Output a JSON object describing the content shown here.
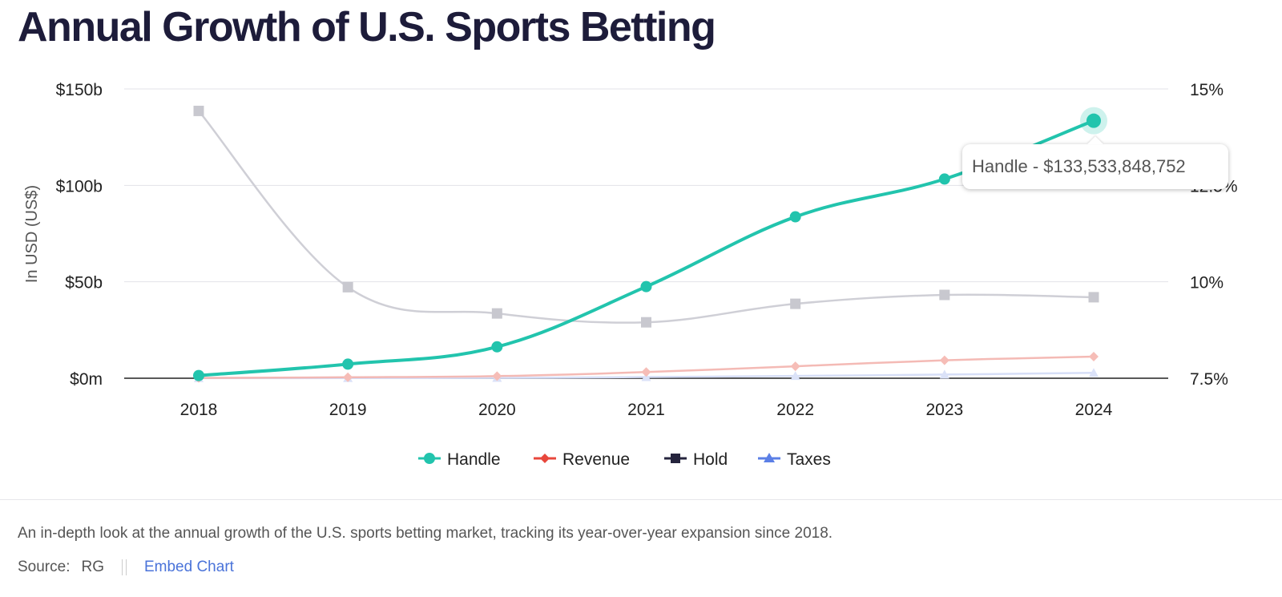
{
  "page": {
    "title": "Annual Growth of U.S. Sports Betting",
    "description": "An in-depth look at the annual growth of the U.S. sports betting market, tracking its year-over-year expansion since 2018.",
    "source_label": "Source:",
    "source_value": "RG",
    "embed_label": "Embed Chart"
  },
  "tooltip": {
    "text": "Handle - $133,533,848,752"
  },
  "colors": {
    "handle": "#22c4ad",
    "revenue": "#e8473c",
    "hold": "#25243d",
    "taxes": "#5b7fe6"
  },
  "chart_data": {
    "type": "line",
    "title": "Annual Growth of U.S. Sports Betting",
    "x": [
      "2018",
      "2019",
      "2020",
      "2021",
      "2022",
      "2023",
      "2024"
    ],
    "ylabel": "In USD (US$)",
    "ylim": [
      0,
      150000000000
    ],
    "y_ticks": [
      "$0m",
      "$50b",
      "$100b",
      "$150b"
    ],
    "y2lim": [
      7.5,
      15
    ],
    "y2_ticks": [
      "7.5%",
      "10%",
      "12.5%",
      "15%"
    ],
    "grid": true,
    "legend_position": "bottom",
    "series": [
      {
        "name": "Handle",
        "axis": "left",
        "marker": "circle",
        "values": [
          1400000000,
          7300000000,
          16300000000,
          47500000000,
          83700000000,
          103300000000,
          133533848752
        ]
      },
      {
        "name": "Revenue",
        "axis": "left",
        "marker": "diamond",
        "values": [
          150000000,
          500000000,
          1100000000,
          3200000000,
          6200000000,
          9300000000,
          11200000000
        ]
      },
      {
        "name": "Hold",
        "axis": "right",
        "marker": "square",
        "values": [
          14.43,
          9.86,
          9.18,
          8.95,
          9.43,
          9.66,
          9.6
        ]
      },
      {
        "name": "Taxes",
        "axis": "left",
        "marker": "triangle",
        "values": [
          30000000,
          100000000,
          200000000,
          600000000,
          1200000000,
          1900000000,
          2800000000
        ]
      }
    ],
    "highlighted": {
      "series": "Handle",
      "x": "2024"
    }
  }
}
